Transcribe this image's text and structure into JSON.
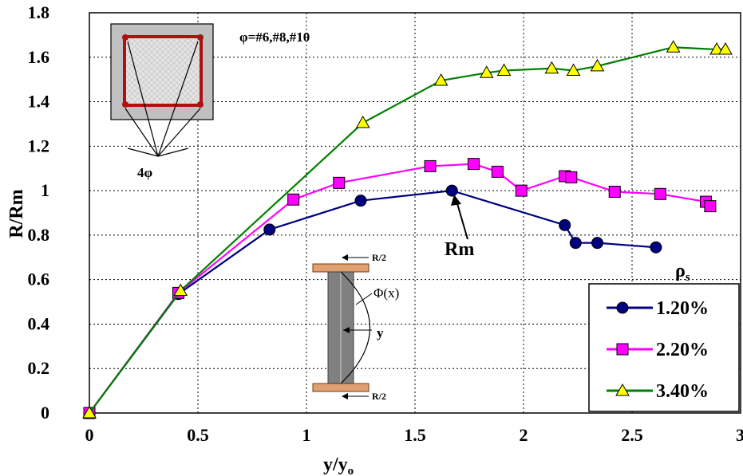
{
  "chart_data": {
    "type": "line",
    "xlabel": "y/y",
    "xlabel_sub": "o",
    "ylabel": "R/Rm",
    "xlim": [
      0,
      3
    ],
    "ylim": [
      0,
      1.8
    ],
    "xticks": [
      "0",
      "0.5",
      "1",
      "1.5",
      "2",
      "2.5",
      "3"
    ],
    "yticks": [
      "0",
      "0.2",
      "0.4",
      "0.6",
      "0.8",
      "1",
      "1.2",
      "1.4",
      "1.6",
      "1.8"
    ],
    "grid": true,
    "legend_position": "bottom-right",
    "legend_title": "ρ",
    "legend_title_sub": "s",
    "series": [
      {
        "name": "1.20%",
        "color": "#000080",
        "marker": "circle",
        "x": [
          0,
          0.41,
          0.83,
          1.25,
          1.67,
          2.19,
          2.24,
          2.34,
          2.61
        ],
        "y": [
          0,
          0.535,
          0.825,
          0.955,
          1.0,
          0.845,
          0.765,
          0.765,
          0.745
        ]
      },
      {
        "name": "2.20%",
        "color": "#FF00FF",
        "marker": "square",
        "x": [
          0,
          0.41,
          0.94,
          1.15,
          1.57,
          1.77,
          1.88,
          1.99,
          2.19,
          2.22,
          2.42,
          2.63,
          2.84,
          2.86
        ],
        "y": [
          0,
          0.54,
          0.96,
          1.035,
          1.11,
          1.12,
          1.085,
          1.0,
          1.065,
          1.06,
          0.995,
          0.985,
          0.95,
          0.93
        ]
      },
      {
        "name": "3.40%",
        "color": "#008000",
        "marker": "triangle",
        "x": [
          0,
          0.42,
          1.26,
          1.62,
          1.83,
          1.91,
          2.13,
          2.23,
          2.34,
          2.69,
          2.89,
          2.93
        ],
        "y": [
          0,
          0.55,
          1.305,
          1.495,
          1.53,
          1.54,
          1.55,
          1.54,
          1.56,
          1.645,
          1.635,
          1.635
        ]
      }
    ],
    "annotations": {
      "rm_label": "Rm",
      "phi_label": "φ=#6,#8,#10",
      "bar_label": "4φ",
      "shear_top": "R/2",
      "shear_bottom": "R/2",
      "curvature": "Φ(x)",
      "y_label": "y"
    }
  }
}
